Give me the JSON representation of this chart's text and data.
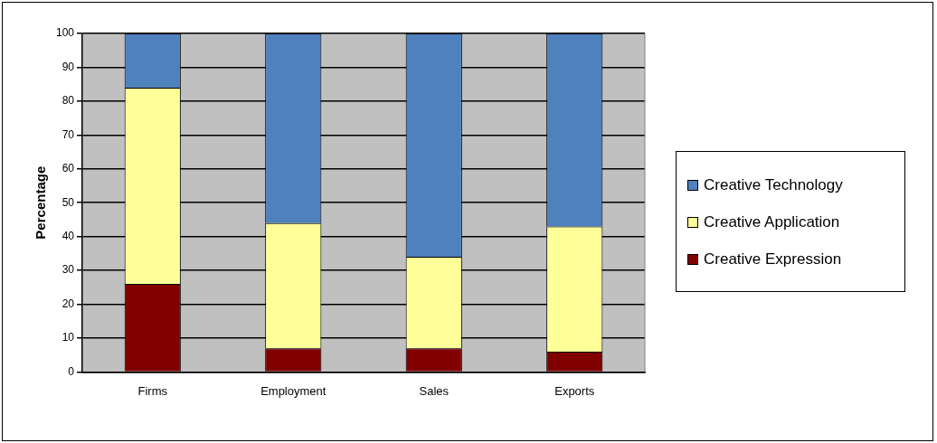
{
  "chart_data": {
    "type": "bar",
    "stacked": true,
    "ylabel": "Percentage",
    "categories": [
      "Firms",
      "Employment",
      "Sales",
      "Exports"
    ],
    "series": [
      {
        "name": "Creative Expression",
        "color": "#800000",
        "values": [
          26,
          7,
          7,
          6
        ]
      },
      {
        "name": "Creative Application",
        "color": "#ffff99",
        "values": [
          58,
          37,
          27,
          37
        ]
      },
      {
        "name": "Creative Technology",
        "color": "#4f81bd",
        "values": [
          16,
          56,
          66,
          57
        ]
      }
    ],
    "ylim": [
      0,
      100
    ],
    "yticks": [
      0,
      10,
      20,
      30,
      40,
      50,
      60,
      70,
      80,
      90,
      100
    ],
    "grid": "y",
    "legend": "right"
  }
}
